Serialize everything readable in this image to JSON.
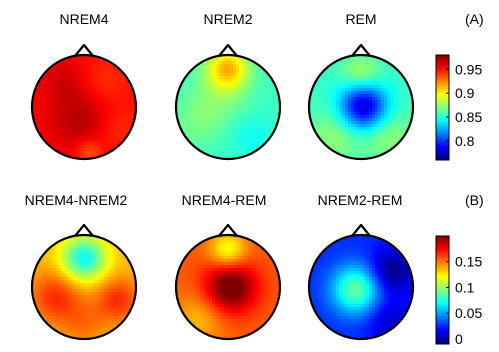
{
  "chart_data": {
    "type": "heatmap",
    "colormap": "jet",
    "panels": [
      {
        "label": "(A)",
        "colorbar": {
          "range": [
            0.76,
            0.98
          ],
          "ticks": [
            0.8,
            0.85,
            0.9,
            0.95
          ],
          "tick_labels": [
            "0.8",
            "0.85",
            "0.9",
            "0.95"
          ]
        },
        "maps": [
          {
            "title": "NREM4",
            "baseline": 0.95,
            "blobs": [
              {
                "x": 0.0,
                "y": -0.2,
                "amp": 0.02,
                "sigma": 0.5
              },
              {
                "x": -0.4,
                "y": 0.55,
                "amp": 0.01,
                "sigma": 0.3
              },
              {
                "x": 0.35,
                "y": 0.4,
                "amp": -0.012,
                "sigma": 0.35
              },
              {
                "x": 0.6,
                "y": -0.4,
                "amp": -0.012,
                "sigma": 0.3
              },
              {
                "x": 0.1,
                "y": -0.85,
                "amp": -0.02,
                "sigma": 0.18
              }
            ]
          },
          {
            "title": "NREM2",
            "baseline": 0.855,
            "blobs": [
              {
                "x": 0.0,
                "y": 0.75,
                "amp": 0.055,
                "sigma": 0.28
              },
              {
                "x": -0.15,
                "y": 0.25,
                "amp": 0.015,
                "sigma": 0.4
              },
              {
                "x": 0.45,
                "y": -0.55,
                "amp": -0.01,
                "sigma": 0.3
              },
              {
                "x": -0.6,
                "y": -0.3,
                "amp": 0.012,
                "sigma": 0.35
              }
            ]
          },
          {
            "title": "REM",
            "baseline": 0.855,
            "blobs": [
              {
                "x": 0.05,
                "y": 0.0,
                "amp": -0.08,
                "sigma": 0.32
              },
              {
                "x": 0.0,
                "y": 0.65,
                "amp": 0.025,
                "sigma": 0.25
              },
              {
                "x": -0.5,
                "y": -0.55,
                "amp": 0.02,
                "sigma": 0.35
              },
              {
                "x": 0.5,
                "y": -0.55,
                "amp": 0.02,
                "sigma": 0.35
              }
            ]
          }
        ]
      },
      {
        "label": "(B)",
        "colorbar": {
          "range": [
            -0.01,
            0.2
          ],
          "ticks": [
            0.0,
            0.05,
            0.1,
            0.15
          ],
          "tick_labels": [
            "0",
            "0.05",
            "0.1",
            "0.15"
          ]
        },
        "maps": [
          {
            "title": "NREM4-NREM2",
            "baseline": 0.135,
            "blobs": [
              {
                "x": 0.0,
                "y": 0.55,
                "amp": -0.065,
                "sigma": 0.3
              },
              {
                "x": -0.55,
                "y": -0.2,
                "amp": 0.03,
                "sigma": 0.35
              },
              {
                "x": 0.65,
                "y": -0.25,
                "amp": 0.03,
                "sigma": 0.3
              },
              {
                "x": 0.0,
                "y": -0.7,
                "amp": 0.015,
                "sigma": 0.3
              }
            ]
          },
          {
            "title": "NREM4-REM",
            "baseline": 0.155,
            "blobs": [
              {
                "x": 0.05,
                "y": 0.0,
                "amp": 0.055,
                "sigma": 0.35
              },
              {
                "x": 0.0,
                "y": 0.7,
                "amp": -0.04,
                "sigma": 0.25
              },
              {
                "x": -0.55,
                "y": -0.6,
                "amp": -0.02,
                "sigma": 0.35
              }
            ]
          },
          {
            "title": "NREM2-REM",
            "baseline": 0.025,
            "blobs": [
              {
                "x": -0.1,
                "y": -0.05,
                "amp": 0.065,
                "sigma": 0.33
              },
              {
                "x": 0.6,
                "y": 0.3,
                "amp": -0.035,
                "sigma": 0.3
              },
              {
                "x": 0.55,
                "y": -0.65,
                "amp": -0.02,
                "sigma": 0.3
              }
            ]
          }
        ]
      }
    ]
  }
}
